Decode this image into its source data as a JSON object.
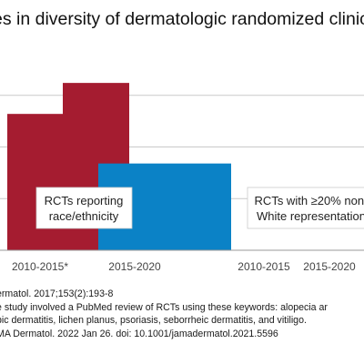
{
  "title": "es in diversity of dermatologic randomized clinical t",
  "chart_data": {
    "type": "bar",
    "title": "es in diversity of dermatologic randomized clinical t",
    "xlabel": "",
    "ylabel": "",
    "ylim": [
      0,
      100
    ],
    "grid": true,
    "groups": [
      {
        "label_lines": [
          "RCTs reporting",
          "race/ethnicity"
        ],
        "color": "#a51c30",
        "bars": [
          {
            "category": "2010-2015*",
            "value": 66
          },
          {
            "category": "2015-2020",
            "value": 81
          }
        ]
      },
      {
        "label_lines": [
          "RCTs with ≥20% non-",
          "White representation"
        ],
        "color": "#0b82c6",
        "bars": [
          {
            "category": "2010-2015",
            "value": 42
          },
          {
            "category": "2015-2020",
            "value": 42
          }
        ]
      }
    ]
  },
  "sources": [
    "ermatol. 2017;153(2):193-8",
    "e study involved a PubMed review of RCTs using these keywords: alopecia ar",
    "pic dermatitis, lichen planus, psoriasis, seborrheic dermatitis, and vitiligo.",
    "MA Dermatol. 2022 Jan 26. doi: 10.1001/jamadermatol.2021.5596"
  ]
}
